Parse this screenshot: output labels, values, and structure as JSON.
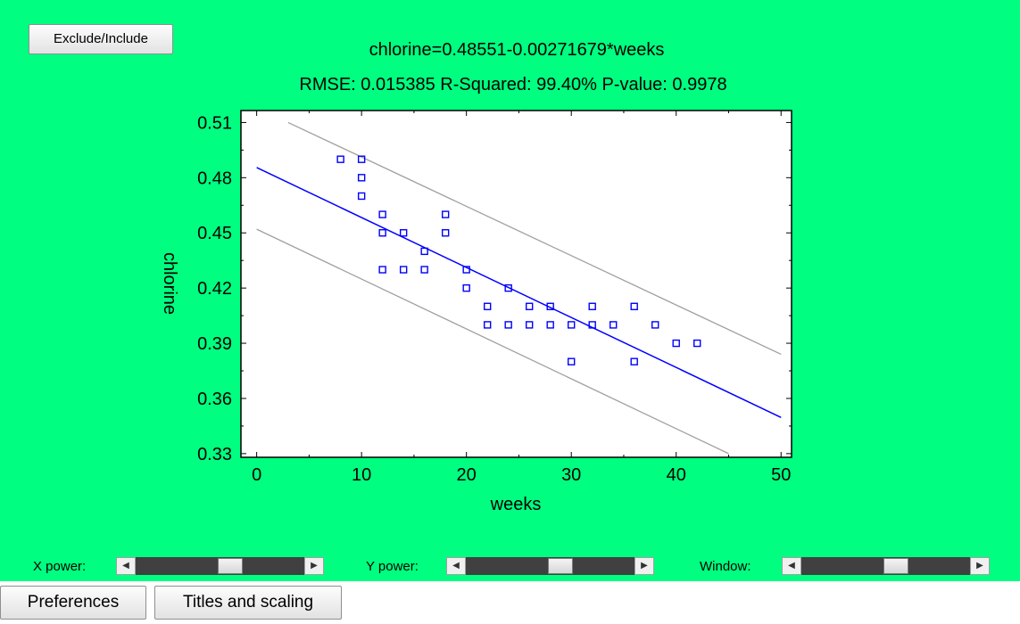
{
  "buttons": {
    "exclude_include": "Exclude/Include",
    "preferences": "Preferences",
    "titles_and_scaling": "Titles and scaling"
  },
  "controls": {
    "x_power_label": "X power:",
    "y_power_label": "Y power:",
    "window_label": "Window:",
    "x_power_position": 0.57,
    "y_power_position": 0.57,
    "window_position": 0.57
  },
  "colors": {
    "panel_background": "#00ff80",
    "points": "#0000ff",
    "fit_line": "#0000ff",
    "prediction_limits": "#a0a0a0"
  },
  "chart_data": {
    "type": "scatter",
    "title": "chlorine=0.48551-0.00271679*weeks",
    "subtitle": "RMSE: 0.015385 R-Squared: 99.40% P-value: 0.9978",
    "xlabel": "weeks",
    "ylabel": "chlorine",
    "xlim": [
      -1.5,
      51
    ],
    "ylim": [
      0.328,
      0.5165
    ],
    "xticks": [
      0,
      10,
      20,
      30,
      40,
      50
    ],
    "xtick_labels": [
      "0",
      "10",
      "20",
      "30",
      "40",
      "50"
    ],
    "yticks": [
      0.33,
      0.36,
      0.39,
      0.42,
      0.45,
      0.48,
      0.51
    ],
    "ytick_labels": [
      "0.33",
      "0.36",
      "0.39",
      "0.42",
      "0.45",
      "0.48",
      "0.51"
    ],
    "grid": false,
    "points": [
      [
        8,
        0.49
      ],
      [
        10,
        0.49
      ],
      [
        10,
        0.48
      ],
      [
        10,
        0.47
      ],
      [
        12,
        0.46
      ],
      [
        12,
        0.45
      ],
      [
        12,
        0.43
      ],
      [
        14,
        0.45
      ],
      [
        14,
        0.43
      ],
      [
        16,
        0.44
      ],
      [
        16,
        0.43
      ],
      [
        18,
        0.46
      ],
      [
        18,
        0.45
      ],
      [
        20,
        0.43
      ],
      [
        20,
        0.42
      ],
      [
        22,
        0.41
      ],
      [
        22,
        0.4
      ],
      [
        24,
        0.42
      ],
      [
        24,
        0.4
      ],
      [
        26,
        0.41
      ],
      [
        26,
        0.4
      ],
      [
        28,
        0.41
      ],
      [
        28,
        0.4
      ],
      [
        30,
        0.4
      ],
      [
        30,
        0.38
      ],
      [
        32,
        0.41
      ],
      [
        32,
        0.4
      ],
      [
        34,
        0.4
      ],
      [
        36,
        0.41
      ],
      [
        36,
        0.38
      ],
      [
        38,
        0.4
      ],
      [
        40,
        0.39
      ],
      [
        42,
        0.39
      ]
    ],
    "fit_line": {
      "intercept": 0.48551,
      "slope": -0.00271679,
      "x_range": [
        0,
        50
      ]
    },
    "prediction_limits": {
      "upper": {
        "x_range": [
          3,
          50
        ],
        "y_range": [
          0.51,
          0.384
        ]
      },
      "lower": {
        "x_range": [
          0,
          45
        ],
        "y_range": [
          0.452,
          0.33
        ]
      }
    }
  }
}
